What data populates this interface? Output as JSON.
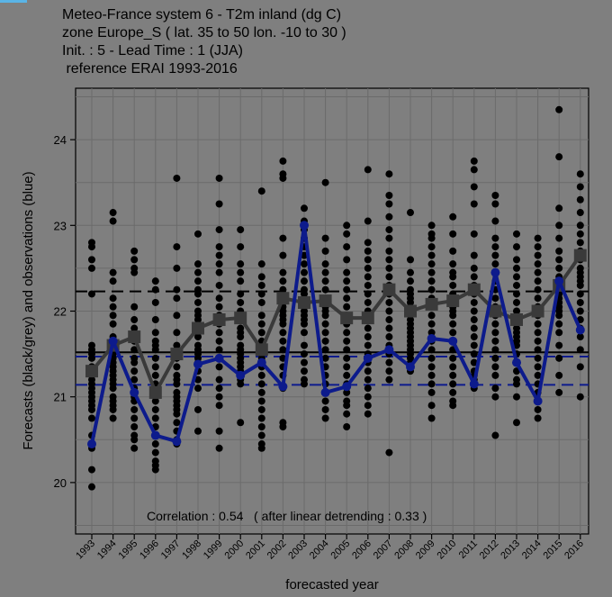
{
  "window": {
    "accent_color": "#5ab4e6",
    "background": "#7f7f7f"
  },
  "chart_data": {
    "type": "scatter",
    "title_lines": [
      "Meteo-France system 6  -  T2m inland (dg C)",
      "zone Europe_S ( lat. 35 to 50    lon. -10 to 30 )",
      "Init. : 5  - Lead Time : 1 (JJA)",
      " reference ERAI 1993-2016"
    ],
    "xlabel": "forecasted year",
    "ylabel": "Forecasts (black/grey) and observations (blue)",
    "ylim": [
      19.4,
      24.6
    ],
    "yticks": [
      20,
      21,
      22,
      23,
      24
    ],
    "x": [
      "1993",
      "1994",
      "1995",
      "1996",
      "1997",
      "1998",
      "1999",
      "2000",
      "2001",
      "2002",
      "2003",
      "2004",
      "2005",
      "2006",
      "2007",
      "2008",
      "2009",
      "2010",
      "2011",
      "2012",
      "2013",
      "2014",
      "2015",
      "2016"
    ],
    "grid": true,
    "annotation": "Correlation : 0.54   ( after linear detrending : 0.33 )",
    "series": [
      {
        "color": "#3a3a3a",
        "marker": "square",
        "values": [
          21.3,
          21.6,
          21.7,
          21.05,
          21.5,
          21.8,
          21.9,
          21.92,
          21.55,
          22.15,
          22.1,
          22.12,
          21.92,
          21.92,
          22.25,
          22.0,
          22.08,
          22.12,
          22.25,
          22.0,
          21.9,
          22.0,
          22.3,
          22.65
        ]
      },
      {
        "color": "#0d1b8c",
        "marker": "circle",
        "values": [
          20.45,
          21.65,
          21.05,
          20.55,
          20.48,
          21.38,
          21.45,
          21.25,
          21.4,
          21.12,
          23.0,
          21.05,
          21.12,
          21.45,
          21.55,
          21.35,
          21.68,
          21.65,
          21.15,
          22.45,
          21.4,
          20.95,
          22.35,
          21.78
        ]
      }
    ],
    "ensemble_members": [
      [
        22.8,
        22.75,
        22.6,
        22.5,
        22.2,
        21.6,
        21.55,
        21.5,
        21.45,
        21.35,
        21.3,
        21.25,
        21.2,
        21.15,
        21.1,
        21.05,
        21.0,
        20.95,
        20.9,
        20.85,
        20.75,
        20.55,
        20.4,
        20.15,
        19.95
      ],
      [
        23.15,
        23.05,
        22.45,
        22.35,
        22.15,
        22.05,
        21.95,
        21.85,
        21.7,
        21.6,
        21.55,
        21.5,
        21.45,
        21.4,
        21.35,
        21.3,
        21.25,
        21.2,
        21.15,
        21.1,
        21.0,
        20.95,
        20.9,
        20.85,
        20.75
      ],
      [
        22.7,
        22.6,
        22.5,
        22.45,
        22.05,
        21.9,
        21.8,
        21.75,
        21.65,
        21.55,
        21.45,
        21.4,
        21.3,
        21.2,
        21.1,
        21.0,
        20.95,
        20.85,
        20.75,
        20.65,
        20.55,
        20.5,
        20.4
      ],
      [
        22.35,
        22.25,
        22.1,
        21.9,
        21.75,
        21.65,
        21.6,
        21.55,
        21.45,
        21.35,
        21.25,
        21.15,
        21.05,
        20.95,
        20.85,
        20.75,
        20.65,
        20.55,
        20.45,
        20.35,
        20.25,
        20.2,
        20.15
      ],
      [
        23.55,
        22.75,
        22.5,
        22.25,
        22.15,
        21.95,
        21.75,
        21.6,
        21.45,
        21.35,
        21.25,
        21.2,
        21.15,
        21.05,
        21.0,
        20.95,
        20.9,
        20.85,
        20.8,
        20.7,
        20.6,
        20.5,
        20.45
      ],
      [
        22.9,
        22.55,
        22.45,
        22.35,
        22.25,
        22.2,
        22.1,
        22.0,
        21.95,
        21.9,
        21.85,
        21.75,
        21.7,
        21.6,
        21.55,
        21.5,
        21.45,
        21.4,
        21.3,
        21.2,
        21.1,
        20.85,
        20.6
      ],
      [
        23.55,
        23.25,
        22.95,
        22.75,
        22.65,
        22.55,
        22.45,
        22.3,
        22.15,
        22.05,
        21.95,
        21.85,
        21.75,
        21.65,
        21.55,
        21.45,
        21.35,
        21.2,
        21.1,
        21.0,
        20.9,
        20.6,
        20.4
      ],
      [
        22.95,
        22.75,
        22.55,
        22.45,
        22.35,
        22.2,
        22.1,
        22.0,
        21.9,
        21.8,
        21.75,
        21.7,
        21.6,
        21.55,
        21.5,
        21.45,
        21.4,
        21.35,
        21.3,
        21.25,
        21.2,
        21.15,
        20.7
      ],
      [
        23.4,
        22.55,
        22.4,
        22.3,
        22.2,
        22.1,
        21.95,
        21.85,
        21.75,
        21.65,
        21.55,
        21.45,
        21.35,
        21.25,
        21.15,
        21.05,
        20.95,
        20.85,
        20.75,
        20.65,
        20.55,
        20.45,
        20.4
      ],
      [
        23.75,
        23.6,
        23.55,
        22.85,
        22.65,
        22.45,
        22.35,
        22.25,
        22.2,
        22.1,
        22.05,
        22.0,
        21.95,
        21.9,
        21.85,
        21.75,
        21.65,
        21.55,
        21.45,
        21.35,
        21.25,
        21.1,
        20.7,
        20.65
      ],
      [
        23.2,
        23.05,
        22.95,
        22.85,
        22.75,
        22.65,
        22.55,
        22.45,
        22.35,
        22.25,
        22.2,
        22.1,
        22.0,
        21.95,
        21.9,
        21.85,
        21.75,
        21.6,
        21.5,
        21.4,
        21.3,
        21.2,
        21.15
      ],
      [
        23.5,
        22.85,
        22.7,
        22.55,
        22.45,
        22.35,
        22.25,
        22.15,
        22.05,
        22.0,
        21.95,
        21.85,
        21.75,
        21.65,
        21.55,
        21.45,
        21.35,
        21.25,
        21.15,
        21.05,
        20.95,
        20.85,
        20.75
      ],
      [
        23.0,
        22.9,
        22.75,
        22.6,
        22.45,
        22.35,
        22.25,
        22.15,
        22.05,
        21.95,
        21.85,
        21.75,
        21.65,
        21.55,
        21.45,
        21.35,
        21.25,
        21.15,
        21.05,
        20.95,
        20.9,
        20.8,
        20.65
      ],
      [
        23.65,
        23.05,
        22.8,
        22.7,
        22.6,
        22.5,
        22.4,
        22.3,
        22.2,
        22.1,
        22.0,
        21.9,
        21.8,
        21.7,
        21.6,
        21.5,
        21.4,
        21.3,
        21.2,
        21.1,
        21.0,
        20.9,
        20.8
      ],
      [
        23.6,
        23.35,
        23.25,
        23.1,
        22.95,
        22.85,
        22.7,
        22.6,
        22.5,
        22.4,
        22.3,
        22.2,
        22.1,
        22.0,
        21.9,
        21.8,
        21.7,
        21.6,
        21.5,
        21.4,
        21.3,
        21.2,
        20.35
      ],
      [
        23.15,
        22.6,
        22.45,
        22.35,
        22.25,
        22.2,
        22.15,
        22.1,
        22.05,
        22.0,
        21.95,
        21.9,
        21.85,
        21.8,
        21.75,
        21.7,
        21.65,
        21.6,
        21.55,
        21.5,
        21.45,
        21.4,
        21.3
      ],
      [
        23.0,
        22.9,
        22.85,
        22.75,
        22.65,
        22.55,
        22.45,
        22.35,
        22.25,
        22.15,
        22.05,
        21.95,
        21.85,
        21.75,
        21.65,
        21.55,
        21.45,
        21.35,
        21.25,
        21.15,
        21.05,
        20.9,
        20.75
      ],
      [
        23.1,
        22.9,
        22.7,
        22.55,
        22.45,
        22.4,
        22.3,
        22.2,
        22.15,
        22.05,
        22.0,
        21.95,
        21.85,
        21.75,
        21.65,
        21.55,
        21.45,
        21.35,
        21.25,
        21.15,
        21.05,
        20.95,
        20.9
      ],
      [
        23.75,
        23.65,
        23.45,
        23.25,
        22.9,
        22.65,
        22.5,
        22.4,
        22.3,
        22.2,
        22.1,
        22.0,
        21.9,
        21.8,
        21.7,
        21.6,
        21.5,
        21.4,
        21.3,
        21.25,
        21.2,
        21.15,
        21.1
      ],
      [
        23.35,
        23.25,
        23.05,
        22.85,
        22.75,
        22.65,
        22.55,
        22.45,
        22.35,
        22.25,
        22.15,
        22.05,
        21.95,
        21.85,
        21.75,
        21.65,
        21.55,
        21.45,
        21.35,
        21.25,
        21.1,
        21.0,
        20.55
      ],
      [
        22.9,
        22.75,
        22.6,
        22.5,
        22.4,
        22.3,
        22.2,
        22.1,
        22.0,
        21.9,
        21.8,
        21.75,
        21.7,
        21.65,
        21.6,
        21.5,
        21.4,
        21.3,
        21.2,
        21.15,
        21.0,
        20.7
      ],
      [
        22.85,
        22.75,
        22.65,
        22.55,
        22.45,
        22.35,
        22.25,
        22.15,
        22.05,
        21.95,
        21.85,
        21.75,
        21.65,
        21.55,
        21.45,
        21.35,
        21.25,
        21.15,
        21.05,
        20.95,
        20.85,
        20.75
      ],
      [
        24.35,
        23.8,
        23.2,
        23.0,
        22.85,
        22.7,
        22.6,
        22.5,
        22.4,
        22.3,
        22.25,
        22.2,
        22.15,
        22.1,
        22.05,
        22.0,
        21.95,
        21.85,
        21.75,
        21.6,
        21.45,
        21.25,
        21.05
      ],
      [
        23.6,
        23.45,
        23.3,
        23.15,
        23.0,
        22.9,
        22.8,
        22.7,
        22.6,
        22.5,
        22.45,
        22.4,
        22.35,
        22.3,
        22.2,
        22.1,
        22.0,
        21.9,
        21.8,
        21.7,
        21.55,
        21.35,
        21.0
      ]
    ],
    "reference_lines": [
      {
        "value": 22.23,
        "color": "#000000",
        "dashed": true
      },
      {
        "value": 21.52,
        "color": "#000000",
        "dashed": false
      },
      {
        "value": 21.47,
        "color": "#0d1b8c",
        "dashed": true
      },
      {
        "value": 21.14,
        "color": "#0d1b8c",
        "dashed": true
      }
    ]
  }
}
